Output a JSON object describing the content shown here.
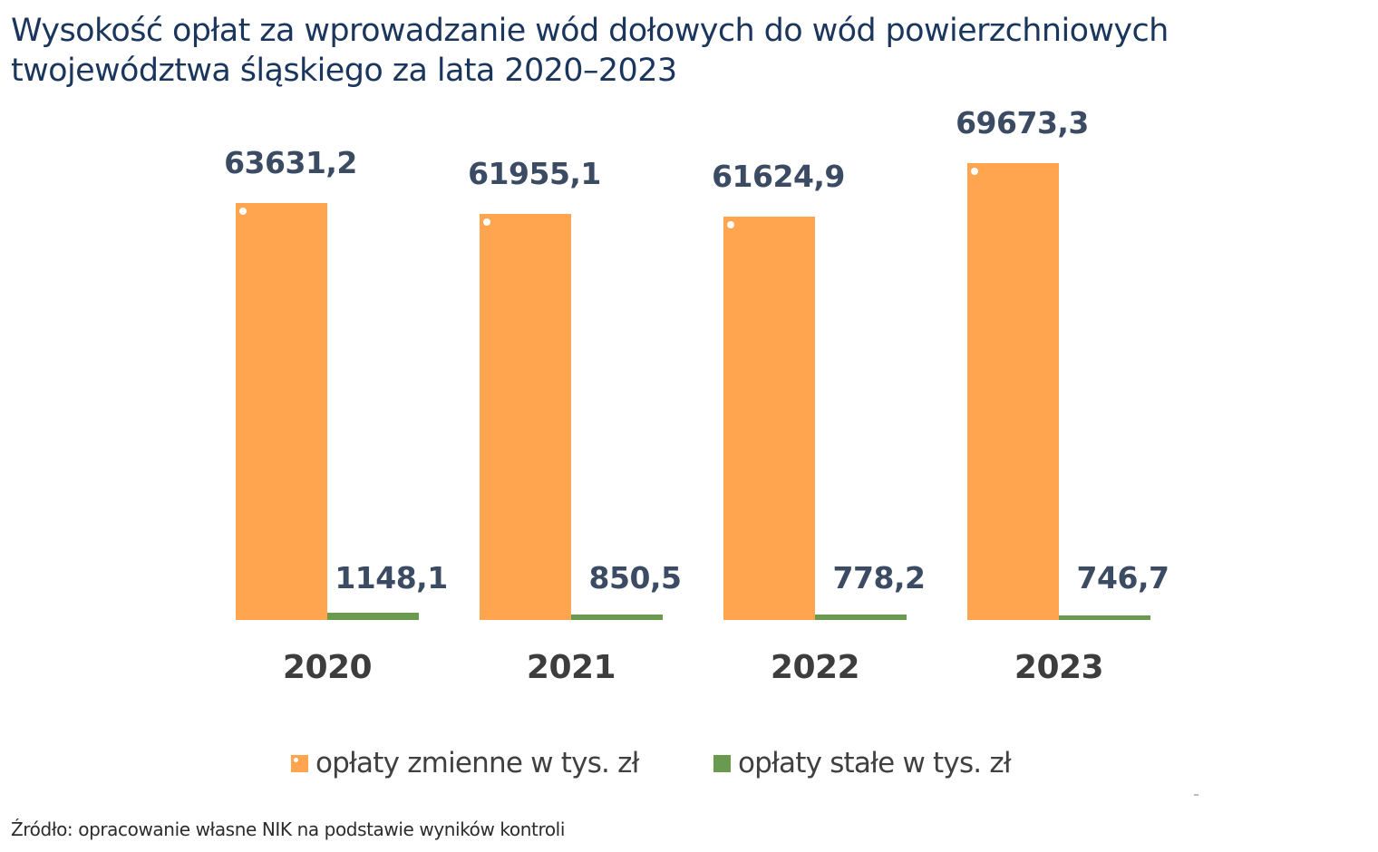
{
  "title": {
    "line1": "Wysokość opłat za wprowadzanie wód dołowych do wód powierzchniowych",
    "line2": "twojewództwa śląskiego za lata 2020–2023"
  },
  "colors": {
    "variable": "#ffa54f",
    "fixed": "#6a9a50",
    "value_label": "#3b4b63",
    "category_label": "#3d3d3d",
    "title": "#1b365d"
  },
  "chart_data": {
    "type": "bar",
    "title": "Wysokość opłat za wprowadzanie wód dołowych do wód powierzchniowych twojewództwa śląskiego za lata 2020–2023",
    "categories": [
      "2020",
      "2021",
      "2022",
      "2023"
    ],
    "series": [
      {
        "name": "opłaty zmienne w tys. zł",
        "values": [
          63631.2,
          61955.1,
          61624.9,
          69673.3
        ],
        "labels": [
          "63631,2",
          "61955,1",
          "61624,9",
          "69673,3"
        ],
        "color": "#ffa54f"
      },
      {
        "name": "opłaty stałe w tys. zł",
        "values": [
          1148.1,
          850.5,
          778.2,
          746.7
        ],
        "labels": [
          "1148,1",
          "850,5",
          "778,2",
          "746,7"
        ],
        "color": "#6a9a50"
      }
    ],
    "xlabel": "",
    "ylabel": "",
    "ylim": [
      0,
      70000
    ],
    "grid": false,
    "axis_visible": false,
    "legend_position": "bottom"
  },
  "legend": {
    "items": [
      {
        "label": "opłaty zmienne w tys. zł"
      },
      {
        "label": "opłaty stałe w tys. zł"
      }
    ]
  },
  "source": "Źródło: opracowanie własne NIK na podstawie wyników kontroli"
}
